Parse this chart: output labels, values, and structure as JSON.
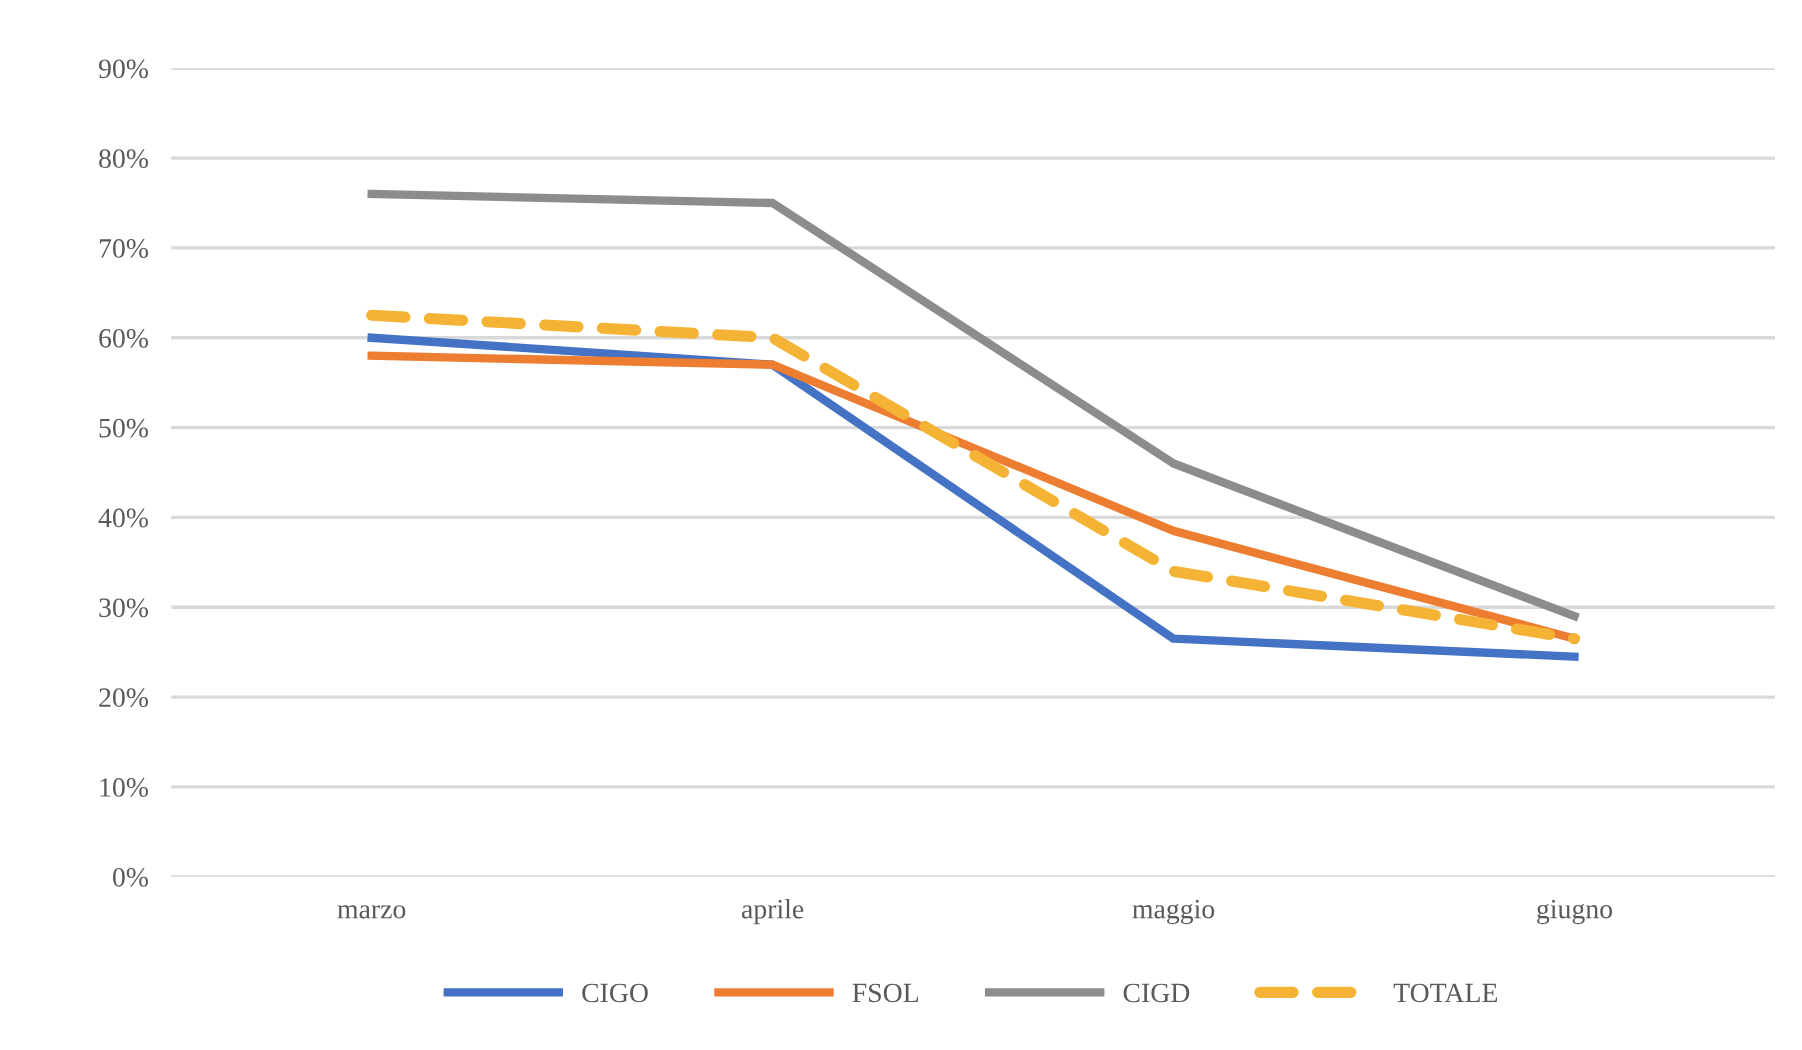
{
  "chart_data": {
    "type": "line",
    "categories": [
      "marzo",
      "aprile",
      "maggio",
      "giugno"
    ],
    "series": [
      {
        "name": "CIGO",
        "color": "#4472c4",
        "values": [
          60,
          57,
          26.5,
          24.5
        ]
      },
      {
        "name": "FSOL",
        "color": "#ed7d31",
        "values": [
          58,
          57,
          38.5,
          26.5
        ]
      },
      {
        "name": "CIGD",
        "color": "#8c8c8c",
        "values": [
          76,
          75,
          46,
          29
        ]
      },
      {
        "name": "TOTALE",
        "color": "#f5b335",
        "values": [
          62.5,
          60,
          34,
          26.5
        ],
        "line_style": "dashed"
      }
    ],
    "ylim": [
      0,
      90
    ],
    "yticks": [
      {
        "value": 0,
        "label": "0%"
      },
      {
        "value": 10,
        "label": "10%"
      },
      {
        "value": 20,
        "label": "20%"
      },
      {
        "value": 30,
        "label": "30%"
      },
      {
        "value": 40,
        "label": "40%"
      },
      {
        "value": 50,
        "label": "50%"
      },
      {
        "value": 60,
        "label": "60%"
      },
      {
        "value": 70,
        "label": "70%"
      },
      {
        "value": 80,
        "label": "80%"
      },
      {
        "value": 90,
        "label": "90%"
      }
    ],
    "grid": "y",
    "legend": "bottom",
    "marker": "none"
  }
}
